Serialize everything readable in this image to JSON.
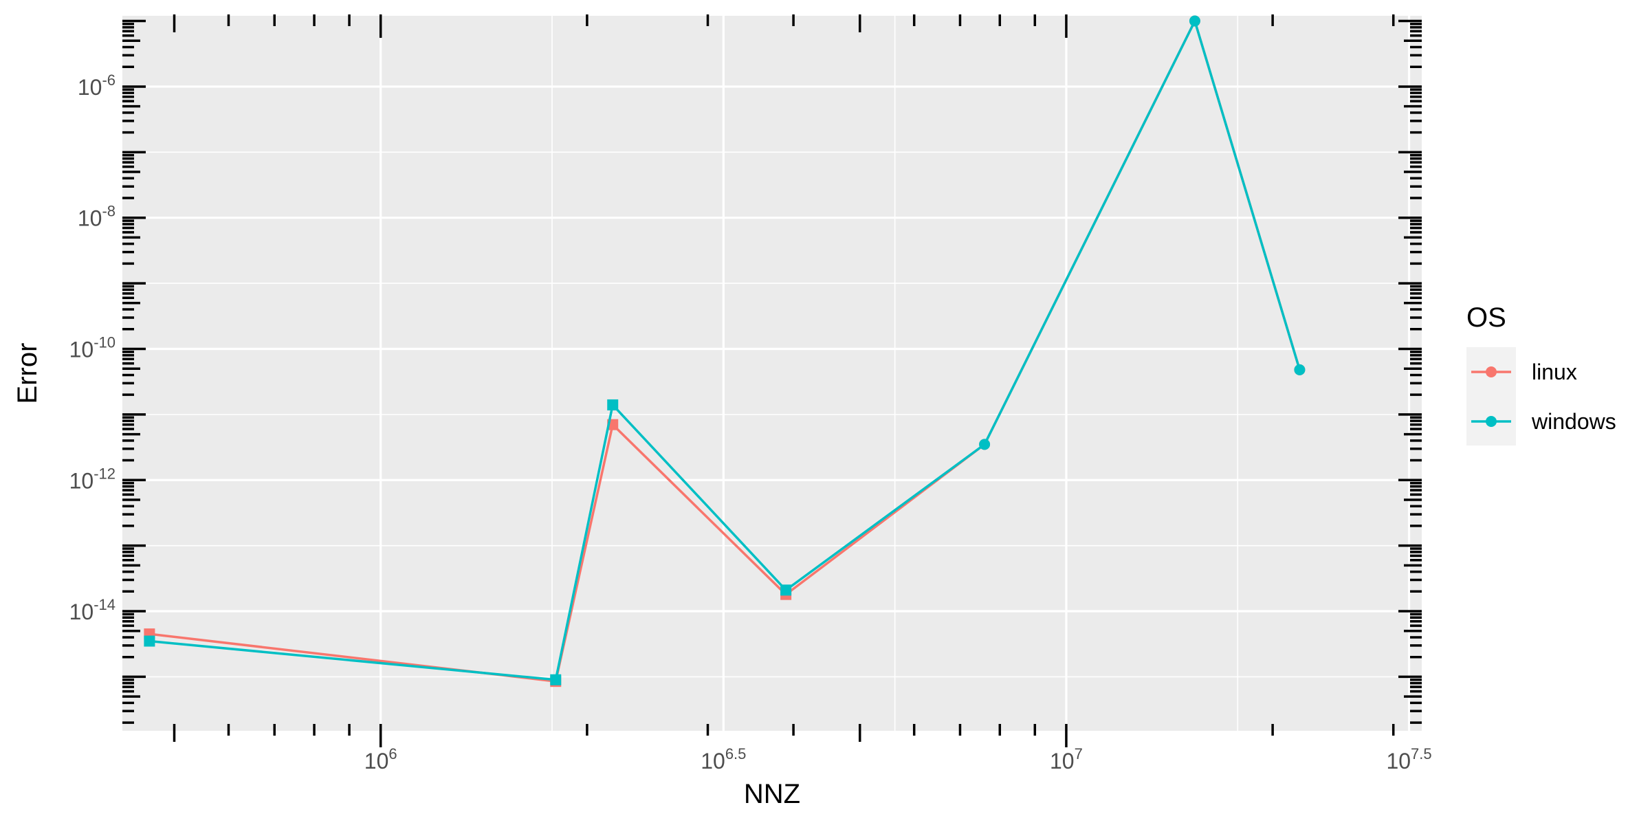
{
  "chart_data": {
    "type": "line",
    "xlabel": "NNZ",
    "ylabel": "Error",
    "x_scale": "log10",
    "y_scale": "log10",
    "xlim": [
      420000,
      33000000
    ],
    "ylim": [
      1.5e-16,
      1.2e-05
    ],
    "x_ticks": [
      {
        "value": 1000000,
        "base": "10",
        "exp": "6"
      },
      {
        "value": 3162278,
        "base": "10",
        "exp": "6.5"
      },
      {
        "value": 10000000,
        "base": "10",
        "exp": "7"
      },
      {
        "value": 31622777,
        "base": "10",
        "exp": "7.5"
      }
    ],
    "y_ticks": [
      {
        "value": 1e-14,
        "base": "10",
        "exp": "-14"
      },
      {
        "value": 1e-12,
        "base": "10",
        "exp": "-12"
      },
      {
        "value": 1e-10,
        "base": "10",
        "exp": "-10"
      },
      {
        "value": 1e-08,
        "base": "10",
        "exp": "-8"
      },
      {
        "value": 1e-06,
        "base": "10",
        "exp": "-6"
      }
    ],
    "grid": true,
    "background": "#ebebeb",
    "legend": {
      "title": "OS",
      "position": "right"
    },
    "series": [
      {
        "name": "linux",
        "color": "#F8766D",
        "x": [
          460000,
          1800000,
          2180000,
          3900000,
          7600000,
          15400000,
          21900000
        ],
        "y": [
          4.5e-15,
          8.5e-16,
          7e-12,
          1.8e-14,
          3.5e-12,
          1e-05,
          4.8e-11
        ],
        "markers": [
          "square",
          "square",
          "square",
          "square",
          "circle",
          "circle",
          "circle"
        ]
      },
      {
        "name": "windows",
        "color": "#00BFC4",
        "x": [
          460000,
          1800000,
          2180000,
          3900000,
          7600000,
          15400000,
          21900000
        ],
        "y": [
          3.5e-15,
          9e-16,
          1.4e-11,
          2.1e-14,
          3.5e-12,
          1e-05,
          4.8e-11
        ],
        "markers": [
          "square",
          "square",
          "square",
          "square",
          "circle",
          "circle",
          "circle"
        ]
      }
    ]
  }
}
